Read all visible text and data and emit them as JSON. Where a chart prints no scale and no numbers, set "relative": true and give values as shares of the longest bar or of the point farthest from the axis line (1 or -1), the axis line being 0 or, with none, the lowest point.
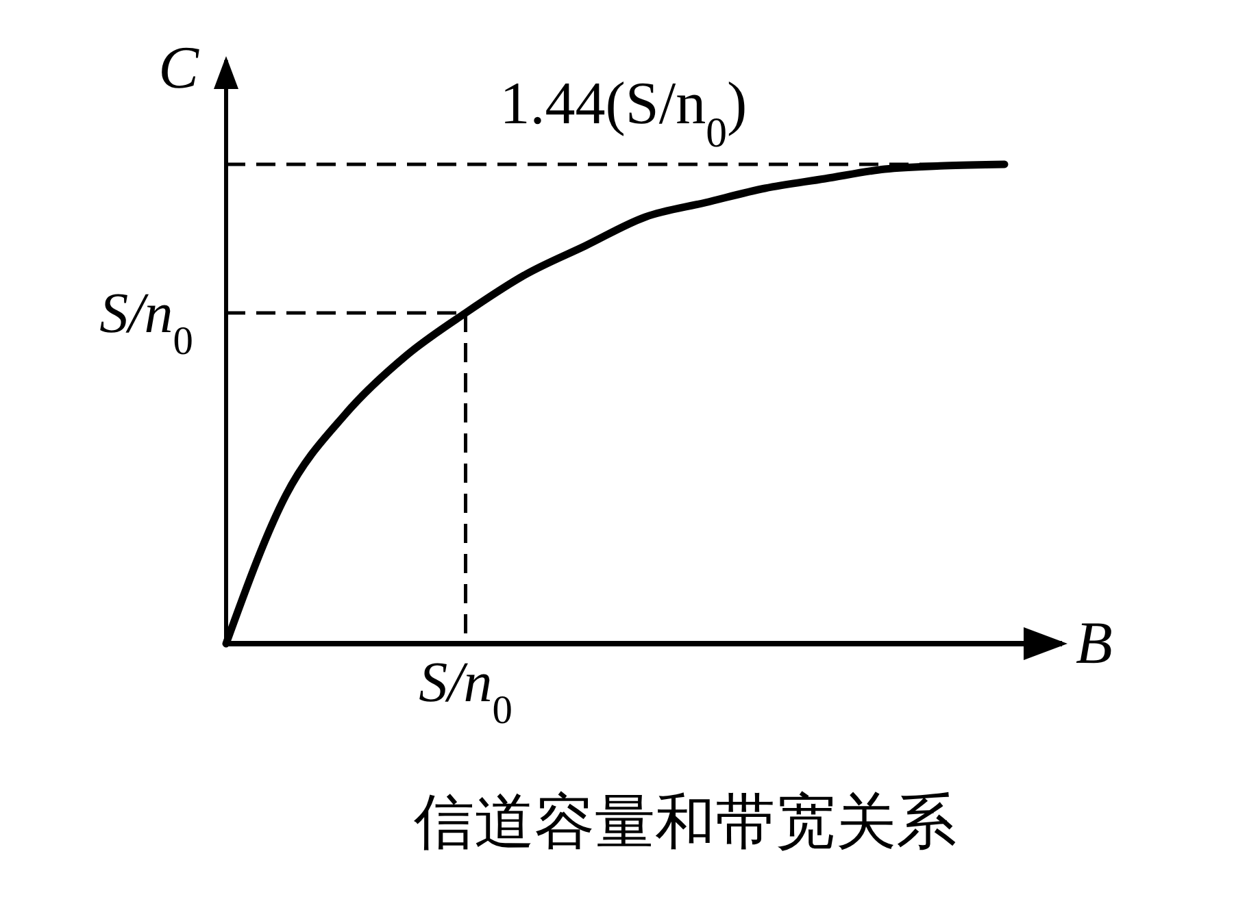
{
  "chart_data": {
    "type": "line",
    "xlabel": "B",
    "ylabel": "C",
    "relative": true,
    "annotations": [
      "信道容量和带宽关系",
      "S/n$_{0}$"
    ],
    "categories": [
      null,
      null,
      null,
      null,
      null,
      null,
      null,
      null,
      null,
      null,
      null,
      null,
      null,
      null
    ],
    "ref_lines": [
      {
        "axis": "y",
        "value": 1,
        "label": "1.44(S/n$_{0}$)"
      },
      {
        "axis": "y",
        "value": 0.69,
        "label": "S/n$_{0}$"
      }
    ],
    "line_style": "solid",
    "series": [
      {
        "color": "#000000",
        "values": [
          0,
          0.31,
          0.48,
          0.6,
          0.69,
          0.77,
          0.83,
          0.89,
          0.92,
          0.95,
          0.97,
          0.99,
          0.997,
          1
        ]
      }
    ]
  }
}
